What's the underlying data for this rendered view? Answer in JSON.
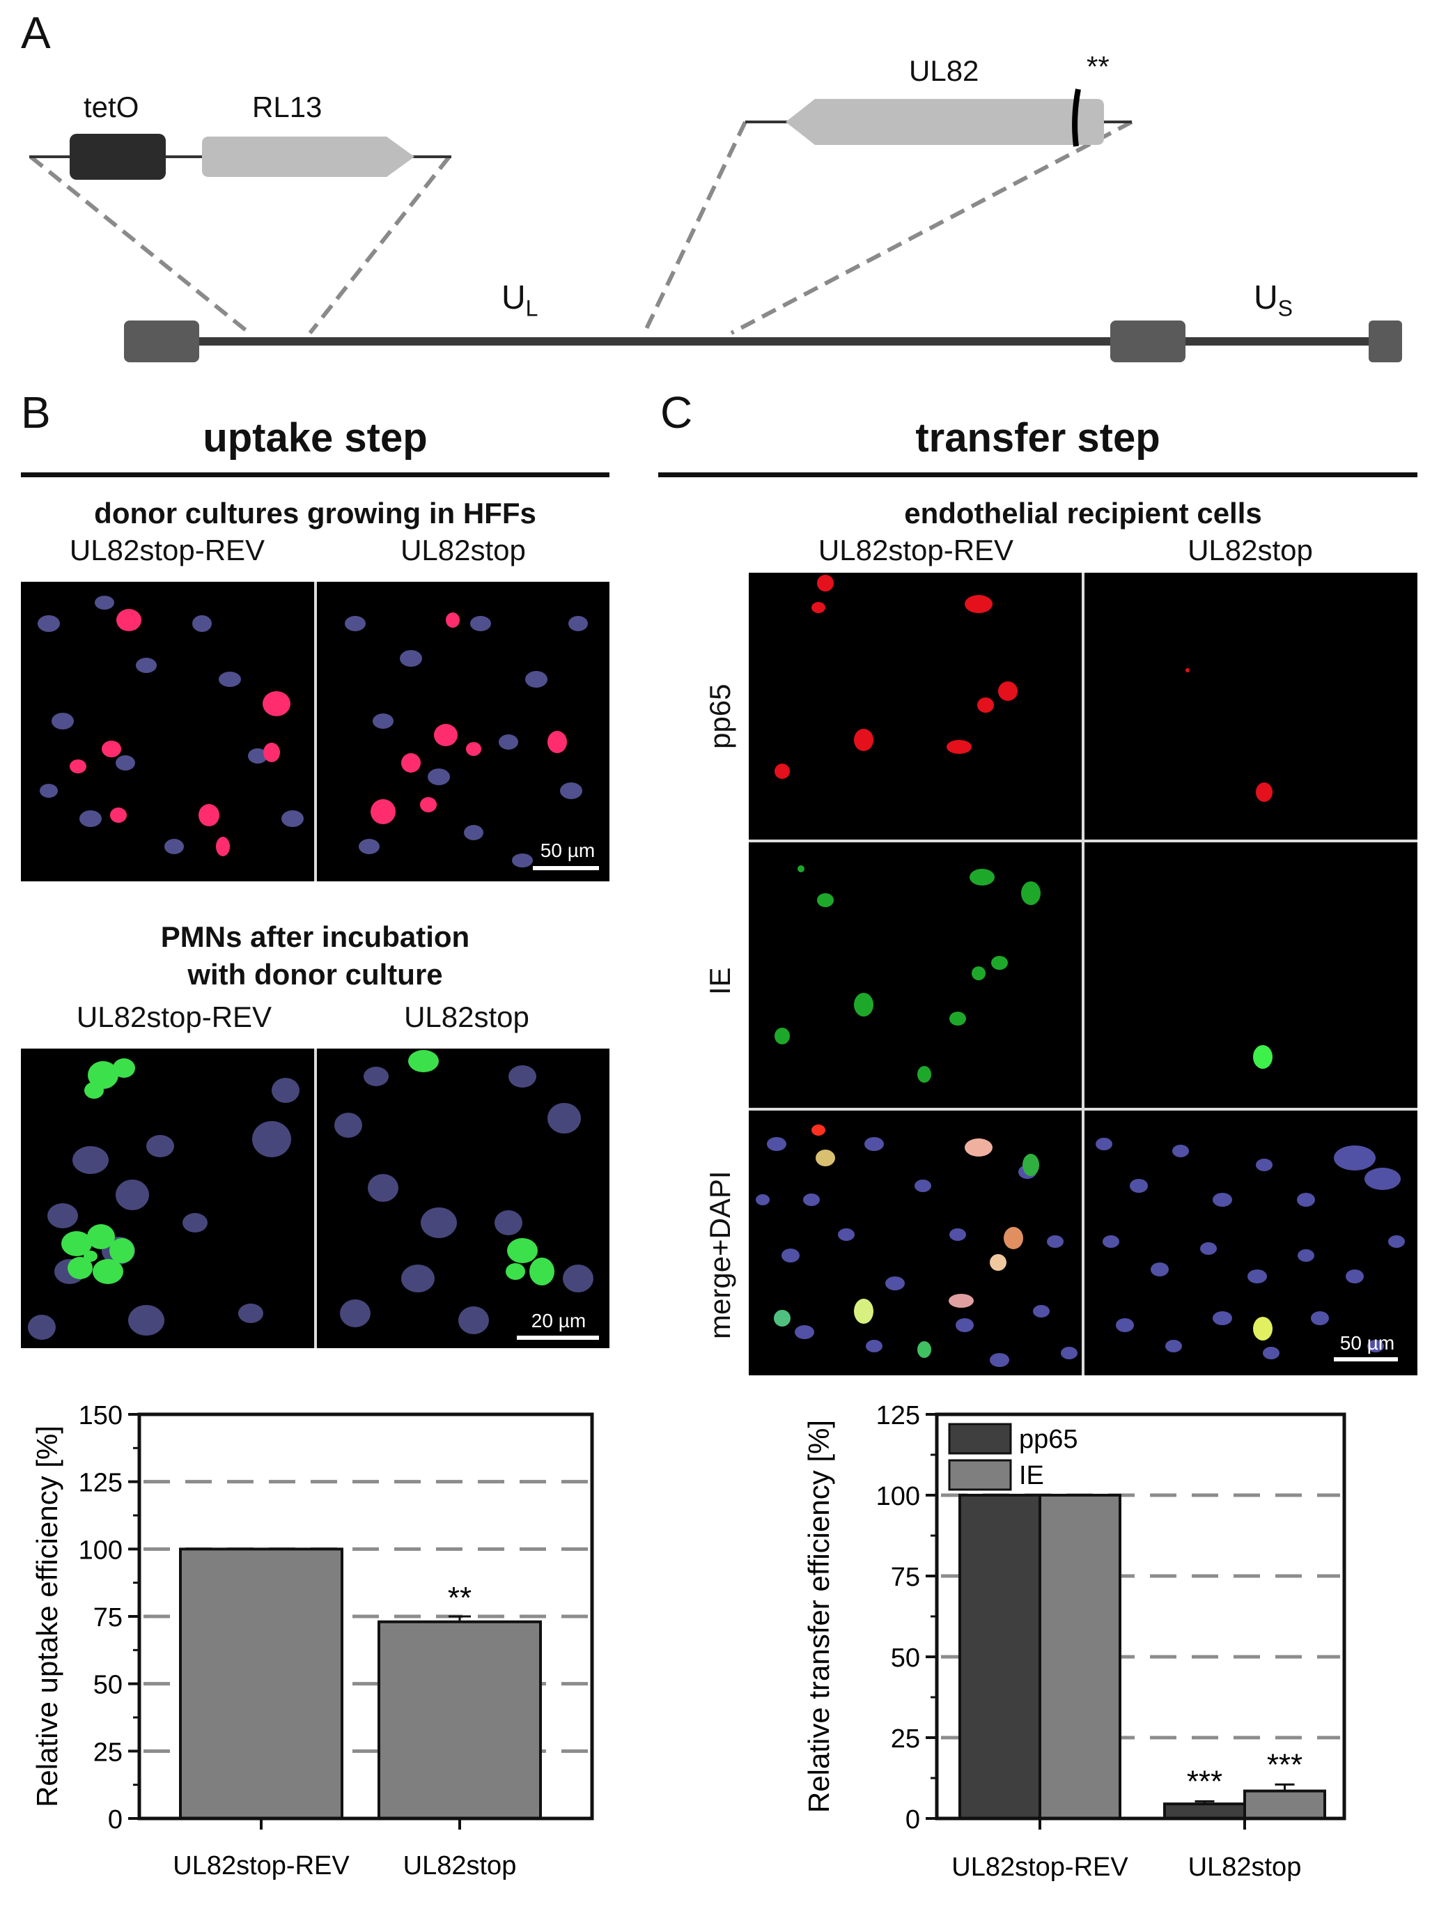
{
  "panel_a": {
    "letter": "A",
    "tetO_label": "tetO",
    "rl13_label": "RL13",
    "ul82_label": "UL82",
    "stop_mark": "**",
    "ul_label": "U",
    "ul_sub": "L",
    "us_label": "U",
    "us_sub": "S"
  },
  "panel_b": {
    "letter": "B",
    "title": "uptake step",
    "donor_heading": "donor cultures growing in HFFs",
    "donor_col_left": "UL82stop-REV",
    "donor_col_right": "UL82stop",
    "donor_scale": "50 µm",
    "pmn_heading_line1": "PMNs after incubation",
    "pmn_heading_line2": "with donor culture",
    "pmn_col_left": "UL82stop-REV",
    "pmn_col_right": "UL82stop",
    "pmn_scale": "20 µm"
  },
  "panel_c": {
    "letter": "C",
    "title": "transfer step",
    "heading": "endothelial recipient cells",
    "col_left": "UL82stop-REV",
    "col_right": "UL82stop",
    "row_pp65": "pp65",
    "row_ie": "IE",
    "row_merge": "merge+DAPI",
    "scale": "50 µm"
  },
  "chart_data": [
    {
      "type": "bar",
      "ylabel": "Relative uptake efficiency [%]",
      "categories": [
        "UL82stop-REV",
        "UL82stop"
      ],
      "values": [
        100,
        73
      ],
      "errors": [
        0,
        2
      ],
      "annotations": [
        "",
        "**"
      ],
      "ylim": [
        0,
        150
      ],
      "yticks": [
        0,
        25,
        50,
        75,
        100,
        125,
        150
      ],
      "grid": "dashed horizontal at 25, 50, 75, 100, 125",
      "bar_color": "#7f7f7f"
    },
    {
      "type": "bar",
      "ylabel": "Relative transfer efficiency [%]",
      "categories": [
        "UL82stop-REV",
        "UL82stop"
      ],
      "series": [
        {
          "name": "pp65",
          "values": [
            100,
            4.5
          ],
          "errors": [
            0,
            0.8
          ],
          "annotations": [
            "",
            "***"
          ],
          "color": "#3f3f3f"
        },
        {
          "name": "IE",
          "values": [
            100,
            8.5
          ],
          "errors": [
            0,
            2
          ],
          "annotations": [
            "",
            "***"
          ],
          "color": "#7f7f7f"
        }
      ],
      "ylim": [
        0,
        125
      ],
      "yticks": [
        0,
        25,
        50,
        75,
        100,
        125
      ],
      "grid": "dashed horizontal at 25, 50, 75, 100",
      "legend": "top-left"
    }
  ]
}
